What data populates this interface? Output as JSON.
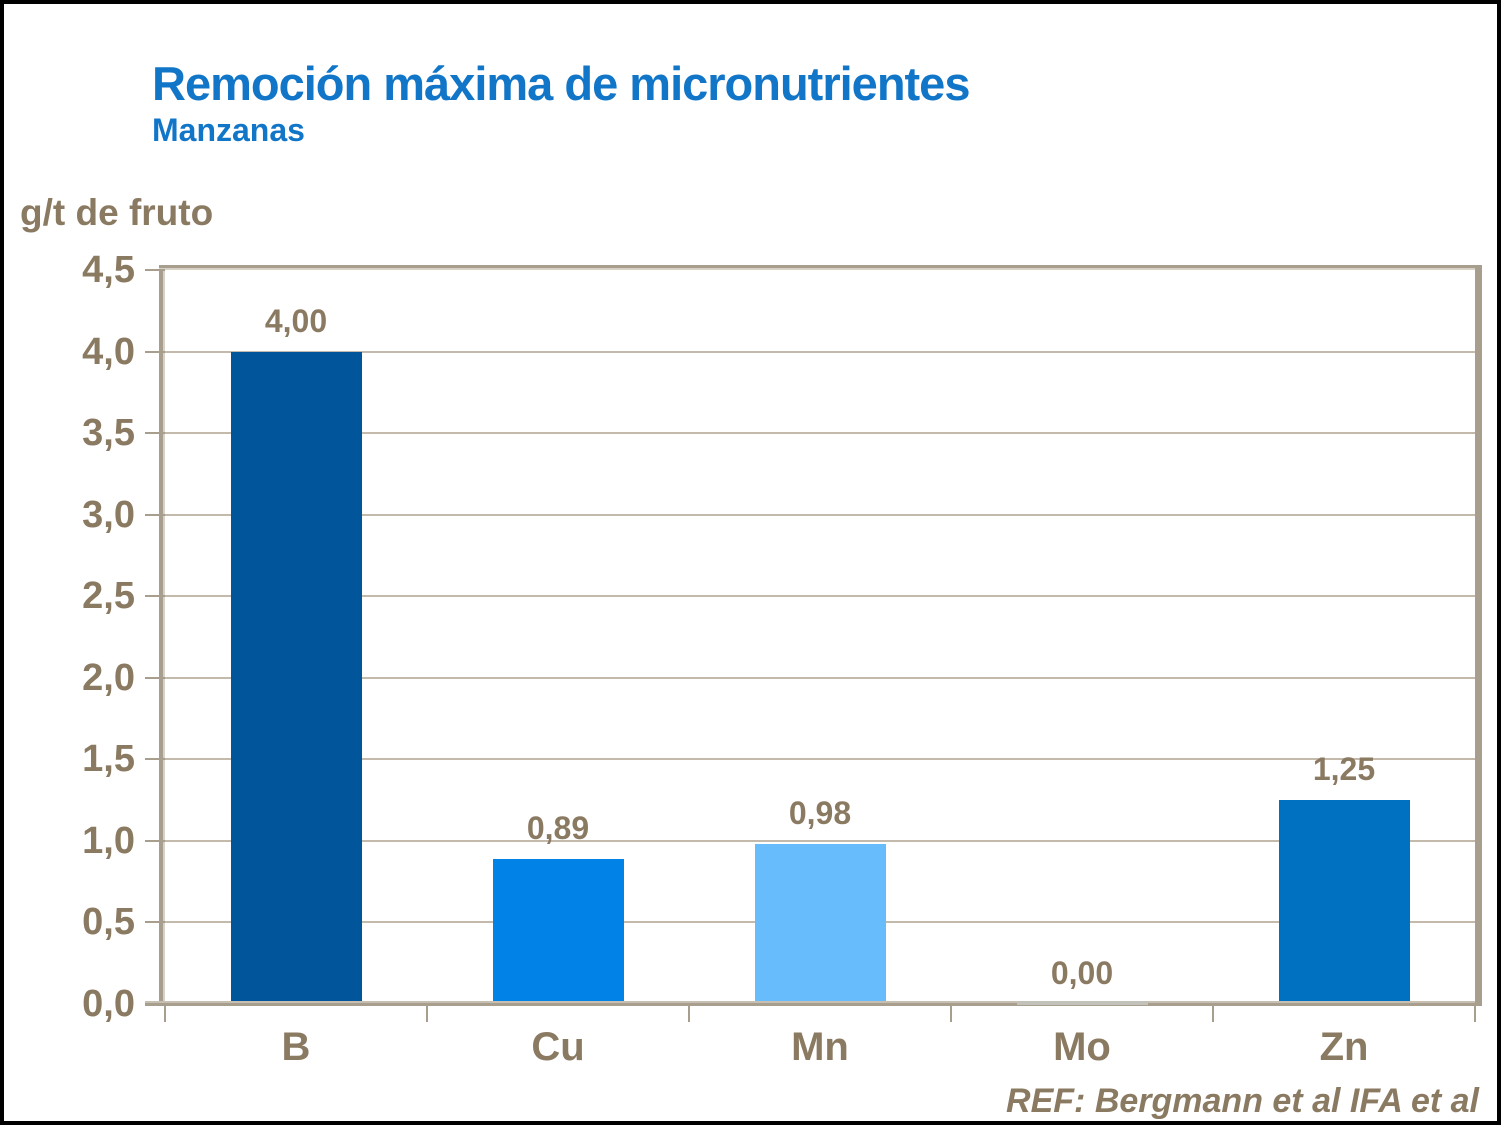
{
  "page": {
    "title": "Remoción máxima de micronutrientes",
    "subtitle": "Manzanas",
    "reference": "REF: Bergmann et al IFA et al"
  },
  "colors": {
    "title_blue": "#1276C8",
    "text_brown": "#8B7A62",
    "grid_line": "#C3BAAC",
    "axis_frame": "#A89E8E"
  },
  "chart_data": {
    "type": "bar",
    "title": "Remoción máxima de micronutrientes",
    "subtitle": "Manzanas",
    "xlabel": "",
    "ylabel": "g/t de fruto",
    "categories": [
      "B",
      "Cu",
      "Mn",
      "Mo",
      "Zn"
    ],
    "values": [
      4.0,
      0.89,
      0.98,
      0.0,
      1.25
    ],
    "value_labels": [
      "4,00",
      "0,89",
      "0,98",
      "0,00",
      "1,25"
    ],
    "bar_colors": [
      "#00559B",
      "#0082E6",
      "#67BCFB",
      "#C2C2BA",
      "#0070C0"
    ],
    "ylim": [
      0,
      4.5
    ],
    "ytick_step": 0.5,
    "ytick_labels": [
      "0,0",
      "0,5",
      "1,0",
      "1,5",
      "2,0",
      "2,5",
      "3,0",
      "3,5",
      "4,0",
      "4,5"
    ],
    "grid": true,
    "legend": false,
    "annotation": "REF: Bergmann et al IFA et al"
  }
}
